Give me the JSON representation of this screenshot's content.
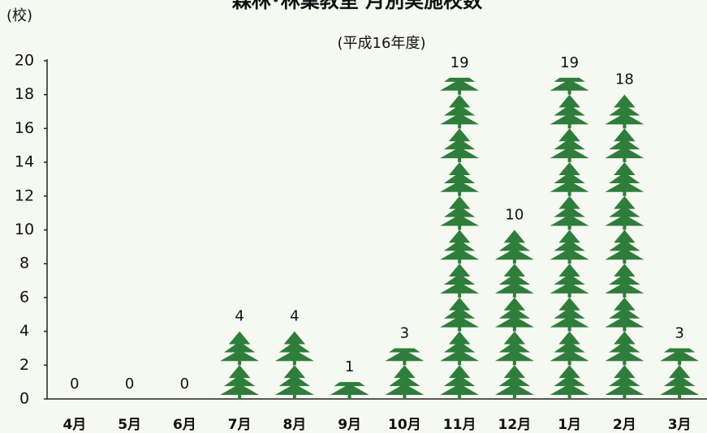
{
  "chart_data": {
    "type": "pictograph",
    "title": "森林･林業教室 月別実施校数",
    "subtitle": "(平成16年度)",
    "y_label": "(校)",
    "categories": [
      "4月",
      "5月",
      "6月",
      "7月",
      "8月",
      "9月",
      "10月",
      "11月",
      "12月",
      "1月",
      "2月",
      "3月"
    ],
    "values": [
      0,
      0,
      0,
      4,
      4,
      1,
      3,
      19,
      10,
      19,
      18,
      3
    ],
    "color": "#2f7d3b",
    "ylim": [
      0,
      20
    ],
    "yticks": [
      0,
      2,
      4,
      6,
      8,
      10,
      12,
      14,
      16,
      18,
      20
    ]
  }
}
